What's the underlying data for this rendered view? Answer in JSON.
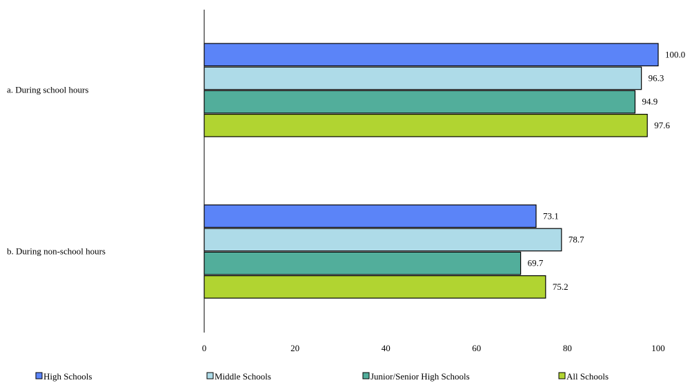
{
  "chart_data": {
    "type": "bar",
    "orientation": "horizontal",
    "categories": [
      "a.   During school hours",
      "b.   During non-school hours"
    ],
    "series": [
      {
        "name": "High Schools",
        "values": [
          100.0,
          73.1
        ],
        "color": "#5b84f8"
      },
      {
        "name": "Middle Schools",
        "values": [
          96.3,
          78.7
        ],
        "color": "#aedbe8"
      },
      {
        "name": "Junior/Senior High Schools",
        "values": [
          94.9,
          69.7
        ],
        "color": "#52ae9b"
      },
      {
        "name": "All Schools",
        "values": [
          97.6,
          75.2
        ],
        "color": "#b1d431"
      }
    ],
    "data_labels": [
      [
        "100.0",
        "73.1"
      ],
      [
        "96.3",
        "78.7"
      ],
      [
        "94.9",
        "69.7"
      ],
      [
        "97.6",
        "75.2"
      ]
    ],
    "xlim": [
      0,
      105
    ],
    "xticks": [
      0,
      20,
      40,
      60,
      80,
      100
    ],
    "grid": false,
    "legend_position": "bottom"
  }
}
